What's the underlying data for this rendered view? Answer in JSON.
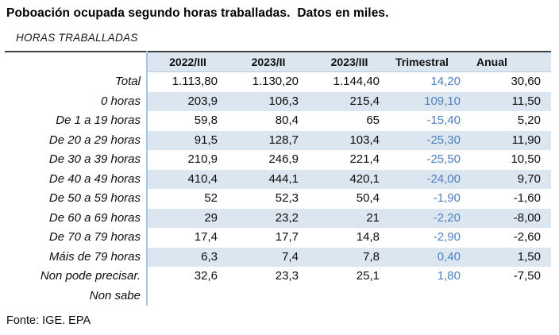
{
  "colors": {
    "header_bg": "#dce6f1",
    "row_alt_bg": "#dce6f1",
    "accent_text": "#4f81bd",
    "divider": "#a9c6e0",
    "top_border": "#3f3f3f",
    "header_underline": "#b9cde2"
  },
  "chart_data": {
    "type": "table",
    "title": "Poboación ocupada segundo horas traballadas.  Datos en miles.",
    "subtitle": "HORAS TRABALLADAS",
    "columns": [
      "2022/III",
      "2023/II",
      "2023/III",
      "Trimestral",
      "Anual"
    ],
    "rows": [
      {
        "label": [
          "Total"
        ],
        "values": [
          "1.113,80",
          "1.130,20",
          "1.144,40",
          "14,20",
          "30,60"
        ]
      },
      {
        "label": [
          "0 horas"
        ],
        "values": [
          "203,9",
          "106,3",
          "215,4",
          "109,10",
          "11,50"
        ]
      },
      {
        "label": [
          "De 1 a 19 horas"
        ],
        "values": [
          "59,8",
          "80,4",
          "65",
          "-15,40",
          "5,20"
        ]
      },
      {
        "label": [
          "De 20 a 29 horas"
        ],
        "values": [
          "91,5",
          "128,7",
          "103,4",
          "-25,30",
          "11,90"
        ]
      },
      {
        "label": [
          "De 30 a 39 horas"
        ],
        "values": [
          "210,9",
          "246,9",
          "221,4",
          "-25,50",
          "10,50"
        ]
      },
      {
        "label": [
          "De 40 a 49 horas"
        ],
        "values": [
          "410,4",
          "444,1",
          "420,1",
          "-24,00",
          "9,70"
        ]
      },
      {
        "label": [
          "De 50 a 59 horas"
        ],
        "values": [
          "52",
          "52,3",
          "50,4",
          "-1,90",
          "-1,60"
        ]
      },
      {
        "label": [
          "De 60 a 69 horas"
        ],
        "values": [
          "29",
          "23,2",
          "21",
          "-2,20",
          "-8,00"
        ]
      },
      {
        "label": [
          "De 70 a 79 horas"
        ],
        "values": [
          "17,4",
          "17,7",
          "14,8",
          "-2,90",
          "-2,60"
        ]
      },
      {
        "label": [
          "Máis de 79 horas"
        ],
        "values": [
          "6,3",
          "7,4",
          "7,8",
          "0,40",
          "1,50"
        ]
      },
      {
        "label": [
          "Non pode precisar.",
          "Non sabe"
        ],
        "values": [
          "32,6",
          "23,3",
          "25,1",
          "1,80",
          "-7,50"
        ]
      }
    ],
    "source": "Fonte: IGE. EPA"
  }
}
